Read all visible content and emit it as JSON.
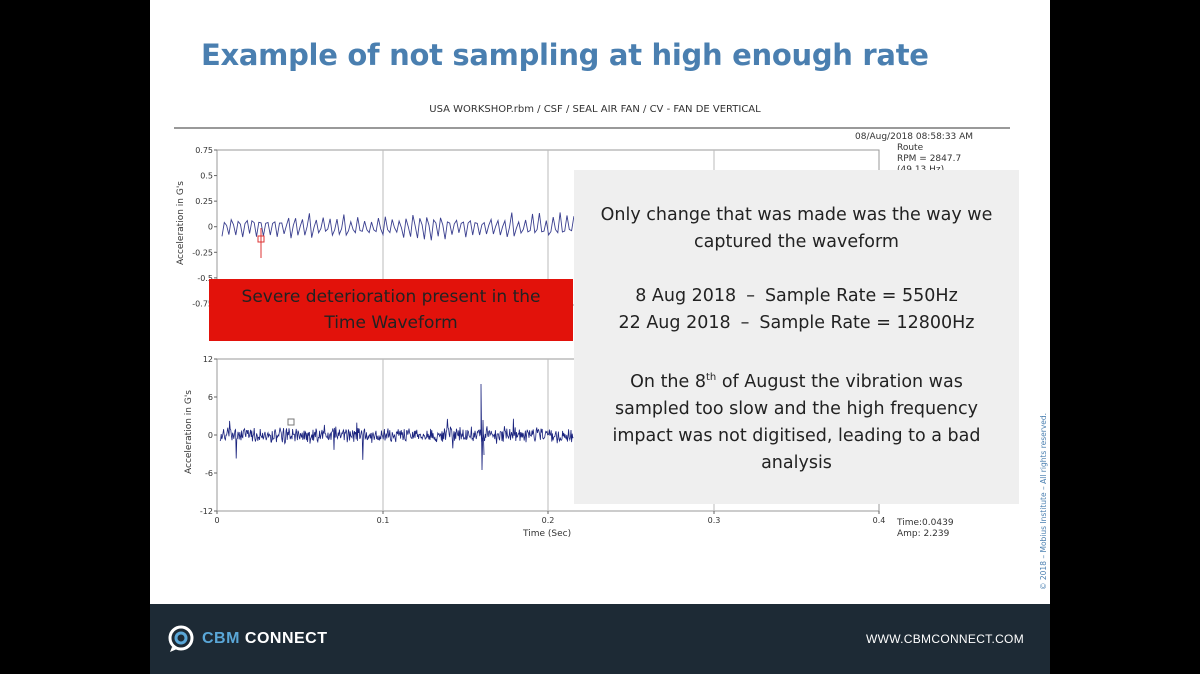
{
  "slide": {
    "title": "Example of not sampling at high enough rate",
    "plot_header": "USA WORKSHOP.rbm / CSF / SEAL AIR FAN / CV - FAN DE VERTICAL",
    "meta": {
      "datetime": "08/Aug/2018 08:58:33 AM",
      "route": "Route",
      "rpm": "RPM = 2847.7",
      "hz": "(49.13 Hz)"
    },
    "top_chart": {
      "ylabel": "Acceleration in G's",
      "yticks": [
        "0.75",
        "0.5",
        "0.25",
        "0",
        "-0.25",
        "-0.5",
        "-0.75"
      ]
    },
    "bottom_chart": {
      "ylabel": "Acceleration in G's",
      "yticks": [
        "12",
        "6",
        "0",
        "-6",
        "-12"
      ],
      "xticks": [
        "0",
        "0.1",
        "0.2",
        "0.3",
        "0.4"
      ],
      "xlabel": "Time (Sec)",
      "readout_time": "Time:0.0439",
      "readout_amp": "Amp: 2.239"
    },
    "callout_red": {
      "line1": "Severe deterioration present in the",
      "line2": "Time Waveform"
    },
    "info": {
      "line1": "Only change that was made was the way we",
      "line2": "captured the waveform",
      "rate1_date": "8 Aug 2018",
      "rate1_dash": "–",
      "rate1_text": "Sample Rate = 550Hz",
      "rate2_date": "22 Aug 2018",
      "rate2_dash": "–",
      "rate2_text": "Sample Rate = 12800Hz",
      "para_a": "On the 8",
      "para_sup": "th",
      "para_b": " of August the vibration was",
      "para_line2": "sampled too slow and the high frequency",
      "para_line3": "impact was not digitised, leading to a bad",
      "para_line4": "analysis"
    },
    "copyright": "© 2018 – Mobius Institute – All rights reserved."
  },
  "footer": {
    "logo_cbm": "CBM",
    "logo_connect": "CONNECT",
    "website": "WWW.CBMCONNECT.COM"
  },
  "colors": {
    "title": "#4a7fb0",
    "callout_red": "#e2120b",
    "footer_bg": "#1d2a35",
    "waveform": "#1a237e"
  }
}
